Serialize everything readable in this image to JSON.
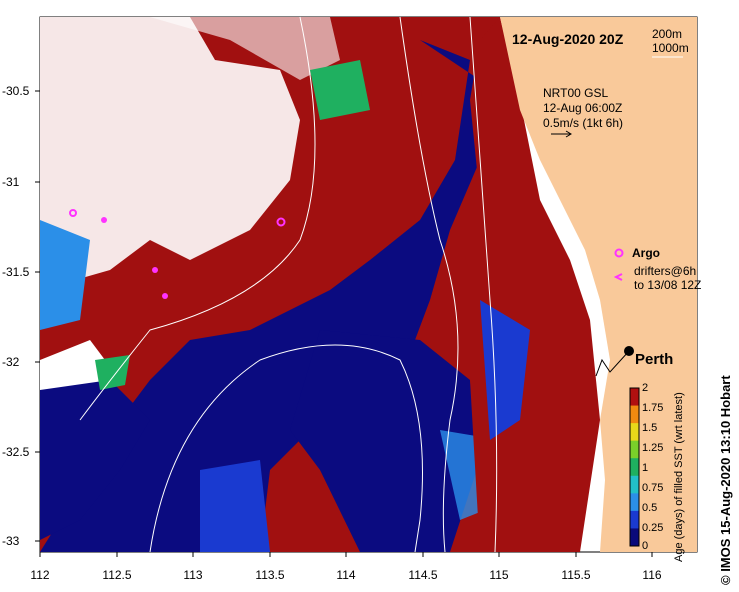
{
  "header": {
    "timestamp": "12-Aug-2020 20Z",
    "contour_legend": [
      "200m",
      "1000m"
    ]
  },
  "currents_note": {
    "lines": [
      "NRT00 GSL",
      "12-Aug 06:00Z",
      "0.5m/s (1kt 6h)"
    ]
  },
  "legend": {
    "argo_label": "Argo",
    "drifters_label": "drifters@6h",
    "drifters_label2": "to 13/08 12Z",
    "argo_color": "#ff33ff",
    "drifter_color": "#ff33ff"
  },
  "place": {
    "city_label": "Perth"
  },
  "axes": {
    "x_ticks": [
      "112",
      "112.5",
      "113",
      "113.5",
      "114",
      "114.5",
      "115",
      "115.5",
      "116"
    ],
    "y_ticks": [
      "-30.5",
      "-31",
      "-31.5",
      "-32",
      "-32.5",
      "-33"
    ]
  },
  "colorbar": {
    "title": "Age (days) of filled SST (wrt latest)",
    "ticks": [
      "2",
      "1.75",
      "1.5",
      "1.25",
      "1",
      "0.75",
      "0.5",
      "0.25",
      "0"
    ],
    "colors": [
      "#0a0a7a",
      "#1a3ad0",
      "#2b8fe8",
      "#22c0c8",
      "#1fb060",
      "#7ad02a",
      "#e8d81a",
      "#f08a10",
      "#b01010"
    ]
  },
  "credit": "© IMOS 15-Aug-2020 13:10 Hobart",
  "colors": {
    "land": "#f9c99a",
    "deep": "#0b0b80",
    "old": "#a11010",
    "nodata": "#ffffff"
  }
}
